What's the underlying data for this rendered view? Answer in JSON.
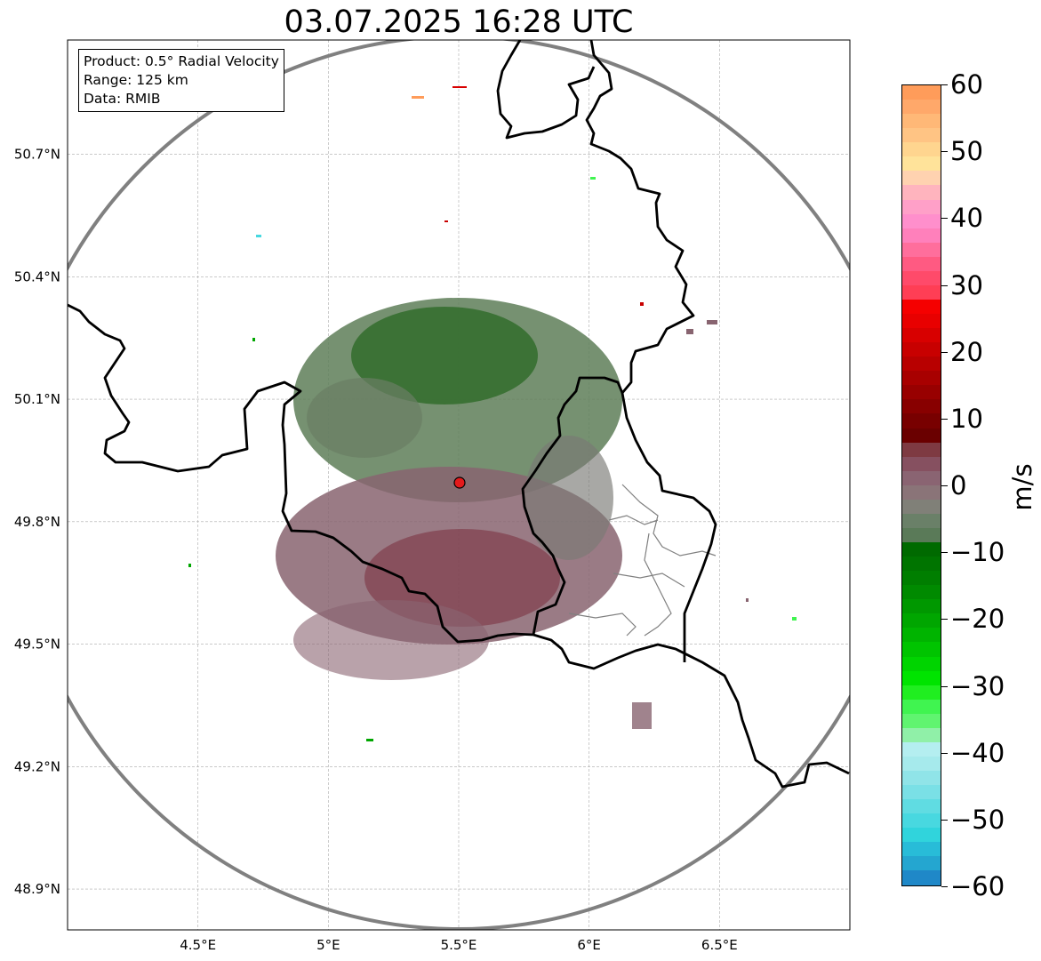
{
  "title": "03.07.2025 16:28 UTC",
  "info": {
    "product": "Product: 0.5° Radial Velocity",
    "range": "Range: 125 km",
    "source": "Data: RMIB"
  },
  "map": {
    "lon_range": [
      4.0,
      7.0
    ],
    "lat_range": [
      48.8,
      50.98
    ],
    "lon_ticks": [
      {
        "value": 4.5,
        "label": "4.5°E"
      },
      {
        "value": 5.0,
        "label": "5°E"
      },
      {
        "value": 5.5,
        "label": "5.5°E"
      },
      {
        "value": 6.0,
        "label": "6°E"
      },
      {
        "value": 6.5,
        "label": "6.5°E"
      }
    ],
    "lat_ticks": [
      {
        "value": 48.9,
        "label": "48.9°N"
      },
      {
        "value": 49.2,
        "label": "49.2°N"
      },
      {
        "value": 49.5,
        "label": "49.5°N"
      },
      {
        "value": 49.8,
        "label": "49.8°N"
      },
      {
        "value": 50.1,
        "label": "50.1°N"
      },
      {
        "value": 50.4,
        "label": "50.4°N"
      },
      {
        "value": 50.7,
        "label": "50.7°N"
      }
    ],
    "radar_site": {
      "lon": 5.505,
      "lat": 49.915
    },
    "range_km": 125,
    "range_ring_color": "#808080",
    "site_marker_color": "#e41a1c"
  },
  "colorbar": {
    "unit": "m/s",
    "min": -60,
    "max": 60,
    "ticks": [
      {
        "value": 60,
        "label": "60"
      },
      {
        "value": 50,
        "label": "50"
      },
      {
        "value": 40,
        "label": "40"
      },
      {
        "value": 30,
        "label": "30"
      },
      {
        "value": 20,
        "label": "20"
      },
      {
        "value": 10,
        "label": "10"
      },
      {
        "value": 0,
        "label": "0"
      },
      {
        "value": -10,
        "label": "−10"
      },
      {
        "value": -20,
        "label": "−20"
      },
      {
        "value": -30,
        "label": "−30"
      },
      {
        "value": -40,
        "label": "−40"
      },
      {
        "value": -50,
        "label": "−50"
      },
      {
        "value": -60,
        "label": "−60"
      }
    ],
    "colors_top_to_bottom": [
      "#ff9c5a",
      "#ffa86a",
      "#ffb877",
      "#ffc484",
      "#ffd58f",
      "#ffe39a",
      "#ffd2b0",
      "#ffb4be",
      "#ffa0c8",
      "#ff8fcc",
      "#ff80bb",
      "#ff6e9c",
      "#ff5a82",
      "#ff4a6a",
      "#ff3e55",
      "#f50000",
      "#e80000",
      "#d80000",
      "#c80000",
      "#b80000",
      "#a80000",
      "#980000",
      "#880000",
      "#780000",
      "#6a0000",
      "#7e3a42",
      "#865060",
      "#8a6472",
      "#8a7478",
      "#808078",
      "#6a8068",
      "#5a7a58",
      "#006a00",
      "#007400",
      "#007e00",
      "#008a00",
      "#009800",
      "#00a600",
      "#00b400",
      "#00c400",
      "#00d400",
      "#00e400",
      "#20ee20",
      "#40f450",
      "#60f470",
      "#90f0a8",
      "#b4eef0",
      "#a6eaec",
      "#90e4e8",
      "#7ae0e6",
      "#60dce2",
      "#48d8e0",
      "#30d4dc",
      "#28bcd8",
      "#24a6d0",
      "#1f88c8"
    ]
  }
}
